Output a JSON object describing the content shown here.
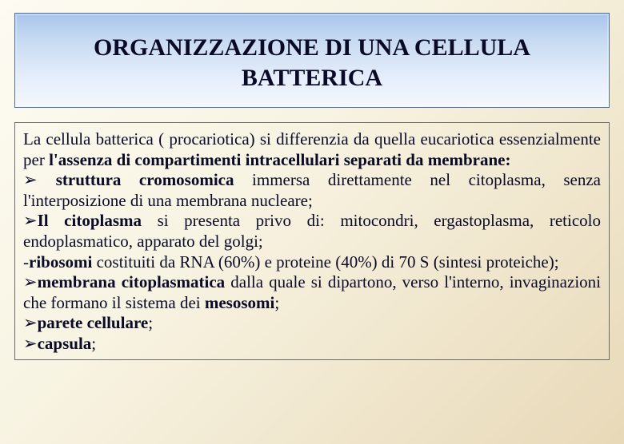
{
  "colors": {
    "title_gradient_top": "#a9c5ec",
    "title_gradient_bottom": "#f4f8fd",
    "title_border": "#4a6fa8",
    "body_bg_top": "#fdfbf2",
    "body_bg_bottom": "#e8d9b8",
    "content_border": "#6b6b6b",
    "text_color": "#0a0a28"
  },
  "typography": {
    "title_fontsize": 30,
    "body_fontsize": 21,
    "font_family": "Times New Roman"
  },
  "title": {
    "line1": "ORGANIZZAZIONE DI UNA CELLULA",
    "line2": "BATTERICA"
  },
  "content": {
    "intro_pre": "La cellula batterica ( procariotica) si differenzia da quella eucariotica essenzialmente per ",
    "intro_bold": "l'assenza di compartimenti intracellulari separati da membrane:",
    "bullets": [
      {
        "marker": "➢ ",
        "bold": "struttura cromosomica",
        "rest": " immersa direttamente nel citoplasma, senza l'interposizione di una membrana nucleare;"
      },
      {
        "marker": "➢",
        "bold": "Il citoplasma",
        "rest": " si presenta privo di: mitocondri, ergastoplasma, reticolo endoplasmatico, apparato del golgi;"
      },
      {
        "marker": "-",
        "bold": "ribosomi",
        "rest": " costituiti da RNA (60%) e proteine (40%) di 70 S (sintesi proteiche);"
      },
      {
        "marker": "➢",
        "bold": "membrana citoplasmatica",
        "rest_pre": " dalla quale si dipartono, verso l'interno, invaginazioni che formano il sistema dei ",
        "rest_bold": "mesosomi",
        "rest_post": ";"
      },
      {
        "marker": "➢",
        "bold": "parete cellulare",
        "rest": ";"
      },
      {
        "marker": "➢",
        "bold": "capsula",
        "rest": ";"
      }
    ]
  }
}
